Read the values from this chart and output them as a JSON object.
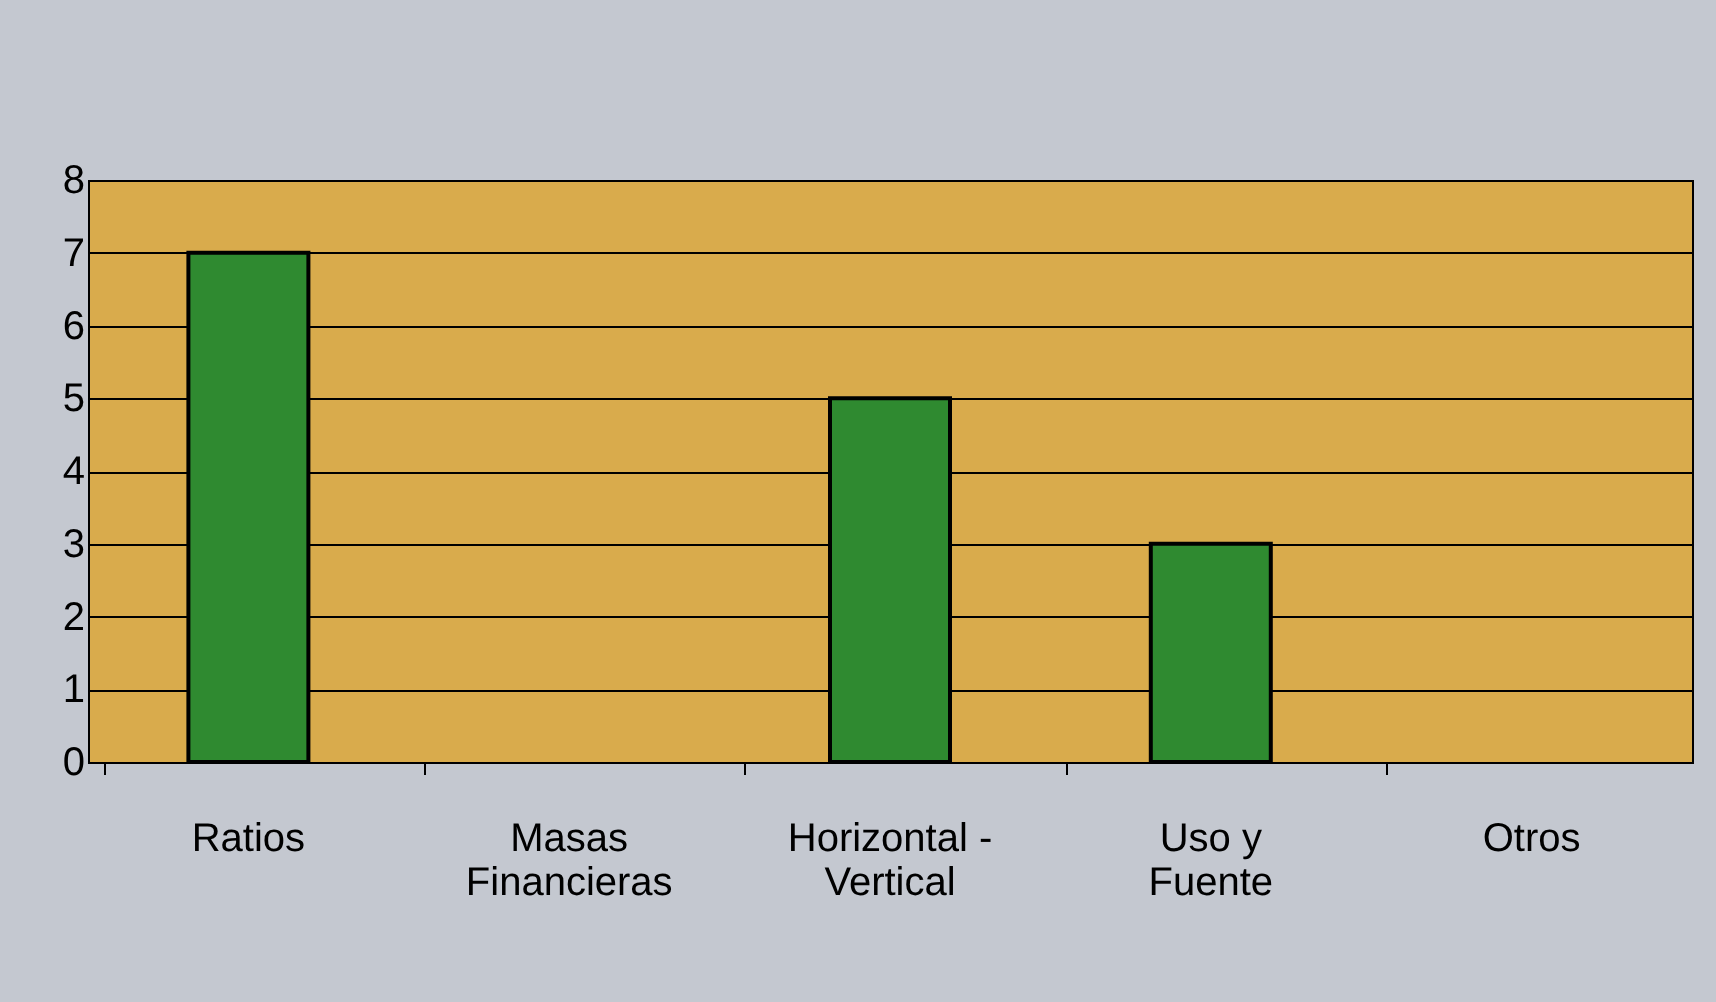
{
  "chart_data": {
    "type": "bar",
    "categories": [
      "Ratios",
      "Masas\nFinancieras",
      "Horizontal -\nVertical",
      "Uso y\nFuente",
      "Otros"
    ],
    "values": [
      7,
      0,
      5,
      3,
      0
    ],
    "color": "#2f8a30",
    "ylim": [
      0,
      8
    ],
    "yticks": [
      0,
      1,
      2,
      3,
      4,
      5,
      6,
      7,
      8
    ],
    "grid": "y"
  }
}
